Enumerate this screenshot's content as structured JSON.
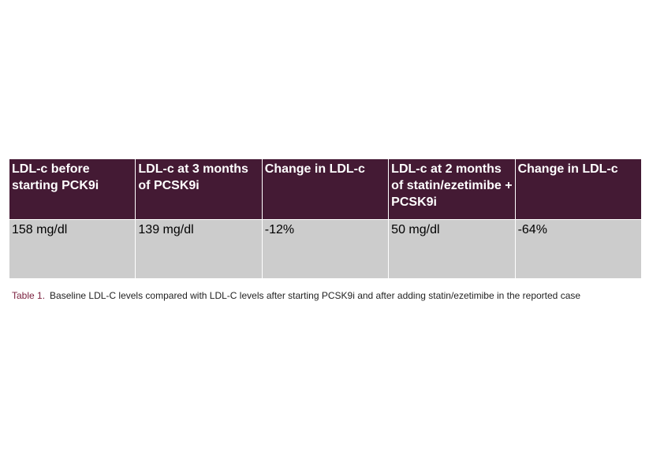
{
  "table": {
    "headers": [
      "LDL-c before starting PCK9i",
      "LDL-c at 3 months of PCSK9i",
      "Change in LDL-c",
      "LDL-c at 2 months of statin/ezetimibe + PCSK9i",
      "Change in LDL-c"
    ],
    "row": [
      "158 mg/dl",
      "139 mg/dl",
      "-12%",
      "50 mg/dl",
      "-64%"
    ]
  },
  "caption": {
    "label": "Table 1.",
    "text": "Baseline LDL-C levels compared with LDL-C levels after starting PCSK9i and after adding statin/ezetimibe in the reported case"
  },
  "colors": {
    "header_bg": "#441a34",
    "cell_bg": "#cccccc",
    "caption_label": "#7a1f3d"
  }
}
